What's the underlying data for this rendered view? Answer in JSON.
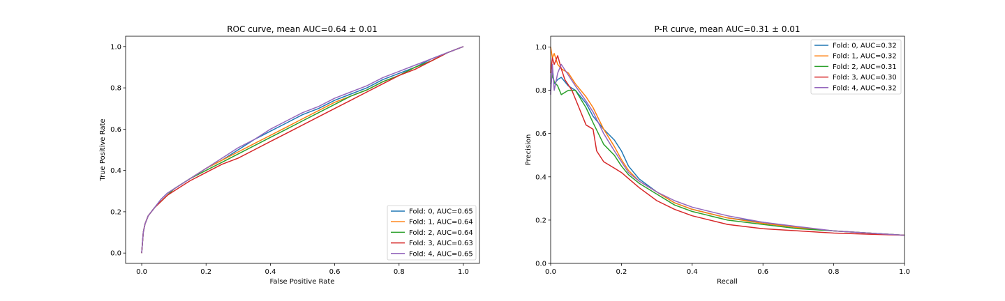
{
  "chart_data": [
    {
      "type": "line",
      "title": "ROC curve, mean AUC=0.64 ± 0.01",
      "xlabel": "False Positive Rate",
      "ylabel": "True Positive Rate",
      "xlim": [
        -0.05,
        1.05
      ],
      "ylim": [
        -0.05,
        1.05
      ],
      "xticks": [
        0.0,
        0.2,
        0.4,
        0.6,
        0.8,
        1.0
      ],
      "yticks": [
        0.0,
        0.2,
        0.4,
        0.6,
        0.8,
        1.0
      ],
      "tick_labels_x": [
        "0.0",
        "0.2",
        "0.4",
        "0.6",
        "0.8",
        "1.0"
      ],
      "tick_labels_y": [
        "0.0",
        "0.2",
        "0.4",
        "0.6",
        "0.8",
        "1.0"
      ],
      "grid": false,
      "legend_position": "lower-right",
      "series": [
        {
          "name": "Fold: 0, AUC=0.65",
          "color": "#1f77b4",
          "x": [
            0,
            0.005,
            0.01,
            0.02,
            0.04,
            0.06,
            0.08,
            0.1,
            0.15,
            0.2,
            0.25,
            0.3,
            0.35,
            0.4,
            0.45,
            0.5,
            0.55,
            0.6,
            0.65,
            0.7,
            0.75,
            0.8,
            0.85,
            0.9,
            0.95,
            1.0
          ],
          "y": [
            0,
            0.1,
            0.14,
            0.18,
            0.22,
            0.26,
            0.29,
            0.31,
            0.36,
            0.41,
            0.45,
            0.5,
            0.55,
            0.59,
            0.63,
            0.67,
            0.7,
            0.74,
            0.77,
            0.8,
            0.84,
            0.87,
            0.9,
            0.94,
            0.97,
            1.0
          ]
        },
        {
          "name": "Fold: 1, AUC=0.64",
          "color": "#ff7f0e",
          "x": [
            0,
            0.005,
            0.01,
            0.02,
            0.04,
            0.06,
            0.08,
            0.1,
            0.15,
            0.2,
            0.25,
            0.3,
            0.35,
            0.4,
            0.45,
            0.5,
            0.55,
            0.6,
            0.65,
            0.7,
            0.75,
            0.8,
            0.85,
            0.9,
            0.95,
            1.0
          ],
          "y": [
            0,
            0.1,
            0.14,
            0.18,
            0.22,
            0.25,
            0.28,
            0.31,
            0.36,
            0.41,
            0.45,
            0.49,
            0.53,
            0.57,
            0.61,
            0.65,
            0.69,
            0.73,
            0.76,
            0.79,
            0.83,
            0.86,
            0.9,
            0.93,
            0.97,
            1.0
          ]
        },
        {
          "name": "Fold: 2, AUC=0.64",
          "color": "#2ca02c",
          "x": [
            0,
            0.005,
            0.01,
            0.02,
            0.04,
            0.06,
            0.08,
            0.1,
            0.15,
            0.2,
            0.25,
            0.3,
            0.35,
            0.4,
            0.45,
            0.5,
            0.55,
            0.6,
            0.65,
            0.7,
            0.75,
            0.8,
            0.85,
            0.9,
            0.95,
            1.0
          ],
          "y": [
            0,
            0.1,
            0.14,
            0.18,
            0.22,
            0.25,
            0.28,
            0.31,
            0.36,
            0.4,
            0.44,
            0.48,
            0.52,
            0.56,
            0.6,
            0.64,
            0.68,
            0.72,
            0.76,
            0.79,
            0.83,
            0.86,
            0.9,
            0.93,
            0.97,
            1.0
          ]
        },
        {
          "name": "Fold: 3, AUC=0.63",
          "color": "#d62728",
          "x": [
            0,
            0.005,
            0.01,
            0.02,
            0.04,
            0.06,
            0.08,
            0.1,
            0.15,
            0.2,
            0.25,
            0.3,
            0.35,
            0.4,
            0.45,
            0.5,
            0.55,
            0.6,
            0.65,
            0.7,
            0.75,
            0.8,
            0.85,
            0.9,
            0.95,
            1.0
          ],
          "y": [
            0,
            0.1,
            0.14,
            0.18,
            0.22,
            0.25,
            0.28,
            0.3,
            0.35,
            0.39,
            0.43,
            0.46,
            0.5,
            0.54,
            0.58,
            0.62,
            0.66,
            0.7,
            0.74,
            0.78,
            0.82,
            0.86,
            0.89,
            0.93,
            0.97,
            1.0
          ]
        },
        {
          "name": "Fold: 4, AUC=0.65",
          "color": "#9467bd",
          "x": [
            0,
            0.005,
            0.01,
            0.02,
            0.04,
            0.06,
            0.08,
            0.1,
            0.15,
            0.2,
            0.25,
            0.3,
            0.35,
            0.4,
            0.45,
            0.5,
            0.55,
            0.6,
            0.65,
            0.7,
            0.75,
            0.8,
            0.85,
            0.9,
            0.95,
            1.0
          ],
          "y": [
            0,
            0.1,
            0.14,
            0.18,
            0.22,
            0.26,
            0.29,
            0.31,
            0.36,
            0.41,
            0.46,
            0.51,
            0.55,
            0.6,
            0.64,
            0.68,
            0.71,
            0.75,
            0.78,
            0.81,
            0.85,
            0.88,
            0.91,
            0.94,
            0.97,
            1.0
          ]
        }
      ]
    },
    {
      "type": "line",
      "title": "P-R curve, mean AUC=0.31 ± 0.01",
      "xlabel": "Recall",
      "ylabel": "Precision",
      "xlim": [
        0.0,
        1.0
      ],
      "ylim": [
        0.0,
        1.05
      ],
      "xticks": [
        0.0,
        0.2,
        0.4,
        0.6,
        0.8,
        1.0
      ],
      "yticks": [
        0.0,
        0.2,
        0.4,
        0.6,
        0.8,
        1.0
      ],
      "tick_labels_x": [
        "0.0",
        "0.2",
        "0.4",
        "0.6",
        "0.8",
        "1.0"
      ],
      "tick_labels_y": [
        "0.0",
        "0.2",
        "0.4",
        "0.6",
        "0.8",
        "1.0"
      ],
      "grid": false,
      "legend_position": "upper-right",
      "series": [
        {
          "name": "Fold: 0, AUC=0.32",
          "color": "#1f77b4",
          "x": [
            0,
            0.005,
            0.01,
            0.02,
            0.03,
            0.05,
            0.07,
            0.1,
            0.12,
            0.15,
            0.18,
            0.2,
            0.22,
            0.25,
            0.3,
            0.35,
            0.4,
            0.5,
            0.6,
            0.7,
            0.8,
            0.9,
            1.0
          ],
          "y": [
            0.8,
            0.9,
            0.83,
            0.85,
            0.86,
            0.82,
            0.8,
            0.74,
            0.68,
            0.62,
            0.57,
            0.52,
            0.45,
            0.39,
            0.33,
            0.28,
            0.25,
            0.21,
            0.19,
            0.165,
            0.15,
            0.14,
            0.13
          ]
        },
        {
          "name": "Fold: 1, AUC=0.32",
          "color": "#ff7f0e",
          "x": [
            0,
            0.005,
            0.01,
            0.02,
            0.03,
            0.05,
            0.07,
            0.1,
            0.12,
            0.15,
            0.18,
            0.2,
            0.22,
            0.25,
            0.3,
            0.35,
            0.4,
            0.5,
            0.6,
            0.7,
            0.8,
            0.9,
            1.0
          ],
          "y": [
            1.0,
            0.95,
            0.97,
            0.92,
            0.9,
            0.88,
            0.83,
            0.77,
            0.72,
            0.62,
            0.54,
            0.48,
            0.43,
            0.38,
            0.33,
            0.28,
            0.25,
            0.21,
            0.185,
            0.165,
            0.15,
            0.14,
            0.13
          ]
        },
        {
          "name": "Fold: 2, AUC=0.31",
          "color": "#2ca02c",
          "x": [
            0,
            0.005,
            0.01,
            0.02,
            0.03,
            0.05,
            0.07,
            0.1,
            0.12,
            0.15,
            0.18,
            0.2,
            0.22,
            0.25,
            0.3,
            0.35,
            0.4,
            0.5,
            0.6,
            0.7,
            0.8,
            0.9,
            1.0
          ],
          "y": [
            0.83,
            0.87,
            0.84,
            0.82,
            0.78,
            0.8,
            0.8,
            0.72,
            0.65,
            0.55,
            0.5,
            0.45,
            0.41,
            0.37,
            0.32,
            0.27,
            0.24,
            0.2,
            0.18,
            0.16,
            0.15,
            0.14,
            0.13
          ]
        },
        {
          "name": "Fold: 3, AUC=0.30",
          "color": "#d62728",
          "x": [
            0,
            0.005,
            0.01,
            0.02,
            0.03,
            0.04,
            0.06,
            0.08,
            0.1,
            0.12,
            0.13,
            0.15,
            0.18,
            0.2,
            0.25,
            0.3,
            0.35,
            0.4,
            0.5,
            0.6,
            0.7,
            0.8,
            0.9,
            1.0
          ],
          "y": [
            0.88,
            0.95,
            0.92,
            0.96,
            0.9,
            0.85,
            0.8,
            0.72,
            0.64,
            0.62,
            0.52,
            0.47,
            0.44,
            0.42,
            0.35,
            0.29,
            0.25,
            0.22,
            0.18,
            0.16,
            0.15,
            0.14,
            0.135,
            0.13
          ]
        },
        {
          "name": "Fold: 4, AUC=0.32",
          "color": "#9467bd",
          "x": [
            0,
            0.005,
            0.01,
            0.02,
            0.03,
            0.05,
            0.07,
            0.1,
            0.12,
            0.15,
            0.18,
            0.2,
            0.22,
            0.25,
            0.3,
            0.35,
            0.4,
            0.5,
            0.6,
            0.7,
            0.8,
            0.9,
            1.0
          ],
          "y": [
            0.78,
            0.92,
            0.8,
            0.88,
            0.92,
            0.87,
            0.82,
            0.75,
            0.7,
            0.6,
            0.52,
            0.47,
            0.42,
            0.38,
            0.33,
            0.29,
            0.26,
            0.22,
            0.19,
            0.17,
            0.15,
            0.14,
            0.13
          ]
        }
      ]
    }
  ]
}
